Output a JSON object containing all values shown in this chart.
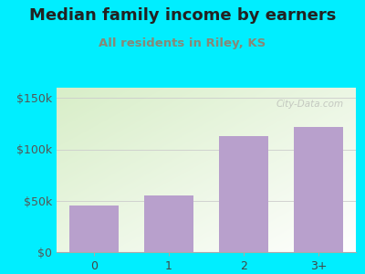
{
  "title": "Median family income by earners",
  "subtitle": "All residents in Riley, KS",
  "categories": [
    "0",
    "1",
    "2",
    "3+"
  ],
  "values": [
    45000,
    55000,
    113000,
    122000
  ],
  "bar_color": "#b8a0cc",
  "outer_bg": "#00eeff",
  "plot_bg_bottom_right": "#ffffff",
  "plot_bg_top_left": "#d8eec8",
  "title_color": "#222222",
  "subtitle_color": "#888877",
  "yticks": [
    0,
    50000,
    100000,
    150000
  ],
  "ytick_labels": [
    "$0",
    "$50k",
    "$100k",
    "$150k"
  ],
  "ylim": [
    0,
    160000
  ],
  "title_fontsize": 13,
  "subtitle_fontsize": 9.5,
  "tick_fontsize": 9,
  "watermark": "City-Data.com",
  "grid_color": "#cccccc",
  "axis_color": "#aaaaaa"
}
